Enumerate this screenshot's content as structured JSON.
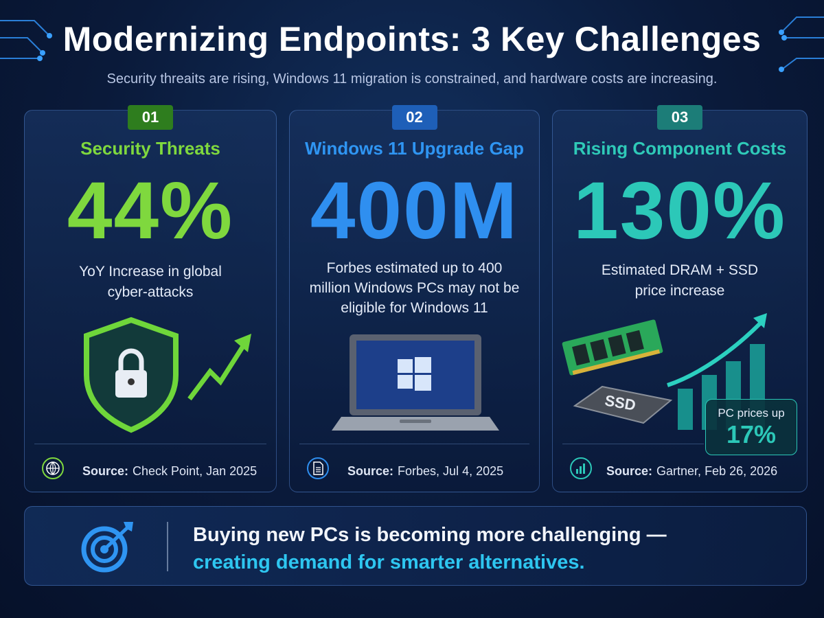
{
  "header": {
    "title": "Modernizing Endpoints: 3 Key Challenges",
    "subtitle": "Security threaits are rising, Windows 11 migration is constrained, and hardware costs are increasing."
  },
  "cards": [
    {
      "number": "01",
      "title": "Security Threats",
      "stat": "44%",
      "description": "YoY Increase in global cyber-attacks",
      "source_label": "Source:",
      "source": "Check Point, Jan 2025"
    },
    {
      "number": "02",
      "title": "Windows 11 Upgrade Gap",
      "stat": "400M",
      "description": "Forbes estimated up to 400 million Windows PCs may not be eligible for Windows 11",
      "source_label": "Source:",
      "source": "Forbes, Jul 4, 2025"
    },
    {
      "number": "03",
      "title": "Rising Component Costs",
      "stat": "130%",
      "description": "Estimated DRAM + SSD price increase",
      "source_label": "Source:",
      "source": "Gartner, Feb 26, 2026",
      "ssd_label": "SSD",
      "badge": {
        "label": "PC prices up",
        "value": "17%"
      }
    }
  ],
  "footer": {
    "line1": "Buying new PCs is becoming more challenging —",
    "line2": "creating demand for smarter alternatives."
  }
}
